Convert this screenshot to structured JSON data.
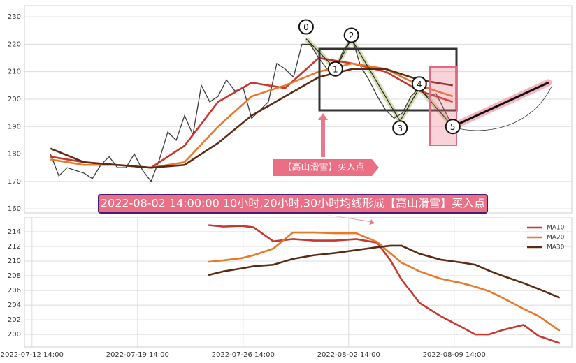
{
  "chart_data": [
    {
      "type": "line",
      "xlim": [
        -3.1,
        62.2
      ],
      "ylim": [
        158.5,
        234.1
      ],
      "yticks": [
        160,
        170,
        180,
        190,
        200,
        210,
        220,
        230
      ],
      "x": [
        0,
        1,
        2,
        3,
        4,
        5,
        6,
        7,
        8,
        9,
        10,
        11,
        12,
        13,
        14,
        15,
        16,
        17,
        18,
        19,
        20,
        21,
        22,
        23,
        24,
        25,
        26,
        27,
        28,
        29,
        30,
        31,
        32,
        33,
        34,
        35,
        36,
        37,
        38,
        39,
        40,
        41,
        42,
        43,
        44,
        45,
        46,
        47,
        48
      ],
      "series": [
        {
          "color": "#3a3a3a",
          "values": [
            180,
            172,
            175,
            174,
            173,
            171,
            176,
            179,
            175,
            175,
            180,
            174,
            170,
            178,
            188,
            185,
            194,
            187,
            205,
            199,
            201,
            207,
            203,
            204,
            193,
            196,
            199,
            213,
            211,
            208,
            220,
            220,
            215,
            211,
            211,
            218,
            222,
            212,
            207,
            201,
            196,
            193,
            195,
            201,
            204,
            201,
            202,
            196,
            190
          ]
        },
        {
          "color": "#c8372d",
          "x": [
            0,
            4,
            8,
            12,
            16,
            20,
            24,
            28,
            32,
            36,
            40,
            44,
            48
          ],
          "values": [
            179,
            177,
            176,
            175,
            183,
            199,
            206,
            204,
            215,
            213,
            210,
            203,
            199
          ]
        },
        {
          "color": "#e8782a",
          "x": [
            0,
            4,
            8,
            12,
            16,
            20,
            24,
            28,
            32,
            36,
            40,
            44,
            48
          ],
          "values": [
            178,
            176,
            176,
            175,
            177,
            190,
            201,
            205,
            210,
            213,
            211,
            205,
            201
          ]
        },
        {
          "color": "#5c2a12",
          "x": [
            0,
            4,
            8,
            12,
            16,
            20,
            24,
            28,
            32,
            36,
            40,
            44,
            48
          ],
          "values": [
            182,
            177,
            176,
            175,
            176,
            184,
            194,
            201,
            208,
            211,
            211,
            207,
            205
          ]
        }
      ],
      "pattern": [
        {
          "label": "0",
          "x": 30.5,
          "value": 222
        },
        {
          "label": "1",
          "x": 34,
          "value": 211
        },
        {
          "label": "2",
          "x": 35.9,
          "value": 222
        },
        {
          "label": "3",
          "x": 41.7,
          "value": 192
        },
        {
          "label": "4",
          "x": 44,
          "value": 204
        },
        {
          "label": "5",
          "x": 48,
          "value": 190
        }
      ],
      "projection": {
        "x": [
          48,
          59.4
        ],
        "values": [
          190,
          206
        ]
      },
      "annotations": [
        "【高山滑雪】买入点",
        "2022-08-02 14:00:00 10小时,20小时,30小时均线形成【高山滑雪】买入点"
      ]
    },
    {
      "type": "line",
      "xlim": [
        -0.5,
        35.8
      ],
      "ylim": [
        198.3,
        215.9
      ],
      "yticks": [
        200,
        202,
        204,
        206,
        208,
        210,
        212,
        214
      ],
      "xticks": [
        {
          "value": 0,
          "label": "2022-07-12 14:00"
        },
        {
          "value": 7,
          "label": "2022-07-19 14:00"
        },
        {
          "value": 14,
          "label": "2022-07-26 14:00"
        },
        {
          "value": 21,
          "label": "2022-08-02 14:00"
        },
        {
          "value": 28,
          "label": "2022-08-09 14:00"
        }
      ],
      "x": [
        11.7,
        12.7,
        13.9,
        14.7,
        16.0,
        17.3,
        18.7,
        20.1,
        21.5,
        22.9,
        23.8,
        24.5,
        25.7,
        27.1,
        28.5,
        29.4,
        30.3,
        31.2,
        32.6,
        33.6,
        35.0
      ],
      "series": [
        {
          "name": "MA10",
          "color": "#c8372d",
          "values": [
            214.9,
            214.7,
            214.8,
            214.6,
            212.7,
            213.0,
            212.8,
            212.8,
            213.0,
            212.5,
            210,
            207.5,
            204.3,
            202.5,
            201,
            200,
            200,
            200.6,
            201.3,
            199.8,
            198.8
          ]
        },
        {
          "name": "MA20",
          "color": "#e8782a",
          "values": [
            209.9,
            210.1,
            210.4,
            210.8,
            211.7,
            213.9,
            213.9,
            213.8,
            213.8,
            212.6,
            211,
            209.8,
            208.6,
            207.6,
            207,
            206.5,
            205.9,
            205,
            203.5,
            202.5,
            200.5
          ]
        },
        {
          "name": "MA30",
          "color": "#5c2a12",
          "values": [
            208.1,
            208.6,
            209,
            209.3,
            209.5,
            210.3,
            210.8,
            211.1,
            211.5,
            211.9,
            212.1,
            212.1,
            211,
            210.2,
            209.8,
            209.5,
            208.7,
            208,
            207,
            206.2,
            205
          ]
        }
      ],
      "legend": "upper right"
    }
  ]
}
